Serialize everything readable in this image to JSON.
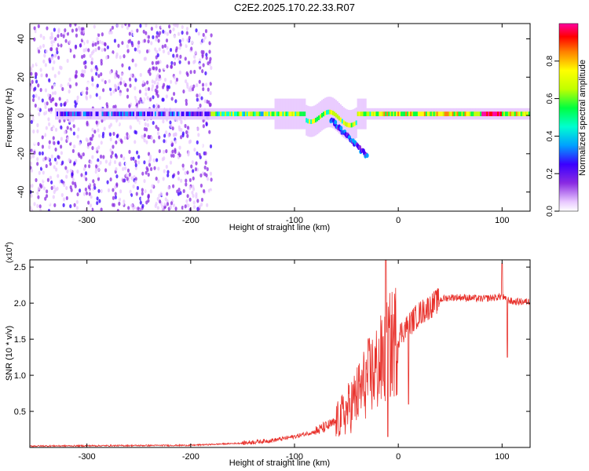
{
  "figure_title": "C2E2.2025.170.22.33.R07",
  "chart_data": [
    {
      "type": "heatmap",
      "xlabel": "Height of straight line (km)",
      "ylabel": "Frequency (Hz)",
      "xlim": [
        -355,
        127
      ],
      "ylim": [
        -50,
        48
      ],
      "x_ticks": [
        -300,
        -200,
        -100,
        0,
        100
      ],
      "y_ticks": [
        -40,
        -20,
        0,
        20,
        40
      ],
      "colorbar": {
        "label": "Normalized spectral amplitude",
        "range": [
          0,
          1
        ],
        "ticks": [
          0.0,
          0.2,
          0.4,
          0.6,
          0.8
        ],
        "colors": [
          "#ffffff",
          "#e8c8ff",
          "#8a2be2",
          "#3a00ff",
          "#00a0ff",
          "#00ffd0",
          "#00ff40",
          "#c0ff00",
          "#ffff00",
          "#ff8000",
          "#ff0000",
          "#ff00a0"
        ]
      },
      "bands": [
        {
          "x_start": -355,
          "x_end": -180,
          "level": 0.25
        },
        {
          "x_start": -180,
          "x_end": -130,
          "level": 0.55
        },
        {
          "x_start": -130,
          "x_end": -20,
          "level": 0.6
        },
        {
          "x_start": -20,
          "x_end": 127,
          "level": 0.65
        }
      ]
    },
    {
      "type": "line",
      "xlabel": "Height of straight line (km)",
      "ylabel": "SNR (10 * v/v)",
      "y_multiplier": "(x10",
      "y_exponent": "4",
      "y_multiplier_close": ")",
      "xlim": [
        -355,
        127
      ],
      "ylim": [
        0,
        2.6
      ],
      "x_ticks": [
        -300,
        -200,
        -100,
        0,
        100
      ],
      "y_ticks": [
        0.5,
        1.0,
        1.5,
        2.0,
        2.5
      ],
      "color": "#e8302a",
      "trend": {
        "x": [
          -355,
          -200,
          -150,
          -120,
          -100,
          -80,
          -60,
          -50,
          -40,
          -30,
          -20,
          -15,
          -10,
          -5,
          0,
          10,
          20,
          30,
          40,
          50,
          60,
          80,
          95,
          100,
          103,
          105,
          110,
          127
        ],
        "y": [
          0.02,
          0.03,
          0.06,
          0.1,
          0.15,
          0.22,
          0.35,
          0.5,
          0.7,
          0.95,
          1.1,
          1.2,
          1.35,
          1.45,
          1.55,
          1.7,
          1.85,
          1.95,
          2.05,
          2.08,
          2.08,
          2.06,
          2.08,
          2.1,
          2.05,
          2.05,
          2.02,
          2.02
        ]
      },
      "spikes": [
        {
          "x": -12,
          "y": 2.6
        },
        {
          "x": -10,
          "y": 0.15
        },
        {
          "x": 10,
          "y": 0.6
        },
        {
          "x": 100,
          "y": 2.55
        },
        {
          "x": 105,
          "y": 1.25
        }
      ]
    }
  ]
}
